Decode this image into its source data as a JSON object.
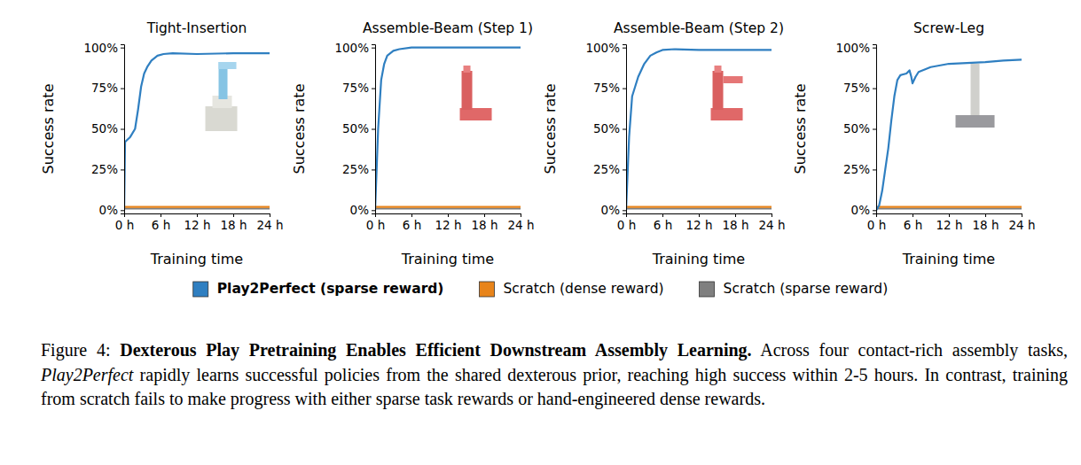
{
  "chart_data": [
    {
      "type": "line",
      "title": "Tight-Insertion",
      "x_label": "Training time",
      "y_label": "Success rate",
      "xlim": [
        0,
        24
      ],
      "ylim": [
        -2,
        102
      ],
      "xticks": [
        {
          "value": 0,
          "label": "0 h"
        },
        {
          "value": 6,
          "label": "6 h"
        },
        {
          "value": 12,
          "label": "12 h"
        },
        {
          "value": 18,
          "label": "18 h"
        },
        {
          "value": 24,
          "label": "24 h"
        }
      ],
      "yticks": [
        {
          "value": 0,
          "label": "0%"
        },
        {
          "value": 25,
          "label": "25%"
        },
        {
          "value": 50,
          "label": "50%"
        },
        {
          "value": 75,
          "label": "75%"
        },
        {
          "value": 100,
          "label": "100%"
        }
      ],
      "legend": "bottom",
      "series": [
        {
          "name": "Play2Perfect (sparse reward)",
          "color": "#2f7fc1",
          "x": [
            0,
            0.15,
            1,
            1.8,
            2.3,
            2.8,
            3.3,
            3.8,
            4.5,
            5.5,
            6.5,
            8,
            12,
            18,
            24
          ],
          "values": [
            0,
            42,
            45,
            50,
            62,
            76,
            84,
            88,
            92,
            95,
            96,
            96.5,
            96,
            96.5,
            96.5
          ]
        },
        {
          "name": "Scratch (dense reward)",
          "color": "#e8841a",
          "x": [
            0,
            24
          ],
          "values": [
            2,
            2
          ]
        },
        {
          "name": "Scratch (sparse reward)",
          "color": "#7f7f7f",
          "x": [
            0,
            24
          ],
          "values": [
            1,
            1
          ]
        }
      ]
    },
    {
      "type": "line",
      "title": "Assemble-Beam (Step 1)",
      "x_label": "Training time",
      "y_label": "Success rate",
      "xlim": [
        0,
        24
      ],
      "ylim": [
        -2,
        102
      ],
      "xticks": [
        {
          "value": 0,
          "label": "0 h"
        },
        {
          "value": 6,
          "label": "6 h"
        },
        {
          "value": 12,
          "label": "12 h"
        },
        {
          "value": 18,
          "label": "18 h"
        },
        {
          "value": 24,
          "label": "24 h"
        }
      ],
      "yticks": [
        {
          "value": 0,
          "label": "0%"
        },
        {
          "value": 25,
          "label": "25%"
        },
        {
          "value": 50,
          "label": "50%"
        },
        {
          "value": 75,
          "label": "75%"
        },
        {
          "value": 100,
          "label": "100%"
        }
      ],
      "series": [
        {
          "name": "Play2Perfect (sparse reward)",
          "color": "#2f7fc1",
          "x": [
            0,
            0.5,
            1,
            1.5,
            2,
            3,
            4,
            6,
            12,
            18,
            24
          ],
          "values": [
            0,
            50,
            80,
            90,
            95,
            98,
            99,
            100,
            100,
            100,
            100
          ]
        },
        {
          "name": "Scratch (dense reward)",
          "color": "#e8841a",
          "x": [
            0,
            24
          ],
          "values": [
            2,
            2
          ]
        },
        {
          "name": "Scratch (sparse reward)",
          "color": "#7f7f7f",
          "x": [
            0,
            24
          ],
          "values": [
            1,
            1
          ]
        }
      ]
    },
    {
      "type": "line",
      "title": "Assemble-Beam (Step 2)",
      "x_label": "Training time",
      "y_label": "Success rate",
      "xlim": [
        0,
        24
      ],
      "ylim": [
        -2,
        102
      ],
      "xticks": [
        {
          "value": 0,
          "label": "0 h"
        },
        {
          "value": 6,
          "label": "6 h"
        },
        {
          "value": 12,
          "label": "12 h"
        },
        {
          "value": 18,
          "label": "18 h"
        },
        {
          "value": 24,
          "label": "24 h"
        }
      ],
      "yticks": [
        {
          "value": 0,
          "label": "0%"
        },
        {
          "value": 25,
          "label": "25%"
        },
        {
          "value": 50,
          "label": "50%"
        },
        {
          "value": 75,
          "label": "75%"
        },
        {
          "value": 100,
          "label": "100%"
        }
      ],
      "series": [
        {
          "name": "Play2Perfect (sparse reward)",
          "color": "#2f7fc1",
          "x": [
            0,
            0.5,
            1,
            2,
            3,
            4,
            5,
            6,
            8,
            12,
            18,
            24
          ],
          "values": [
            0,
            45,
            70,
            82,
            90,
            95,
            97,
            98.5,
            99,
            98.5,
            98.5,
            98.5
          ]
        },
        {
          "name": "Scratch (dense reward)",
          "color": "#e8841a",
          "x": [
            0,
            24
          ],
          "values": [
            2,
            2
          ]
        },
        {
          "name": "Scratch (sparse reward)",
          "color": "#7f7f7f",
          "x": [
            0,
            24
          ],
          "values": [
            1,
            1
          ]
        }
      ]
    },
    {
      "type": "line",
      "title": "Screw-Leg",
      "x_label": "Training time",
      "y_label": "Success rate",
      "xlim": [
        0,
        24
      ],
      "ylim": [
        -2,
        102
      ],
      "xticks": [
        {
          "value": 0,
          "label": "0 h"
        },
        {
          "value": 6,
          "label": "6 h"
        },
        {
          "value": 12,
          "label": "12 h"
        },
        {
          "value": 18,
          "label": "18 h"
        },
        {
          "value": 24,
          "label": "24 h"
        }
      ],
      "yticks": [
        {
          "value": 0,
          "label": "0%"
        },
        {
          "value": 25,
          "label": "25%"
        },
        {
          "value": 50,
          "label": "50%"
        },
        {
          "value": 75,
          "label": "75%"
        },
        {
          "value": 100,
          "label": "100%"
        }
      ],
      "series": [
        {
          "name": "Play2Perfect (sparse reward)",
          "color": "#2f7fc1",
          "x": [
            0,
            0.5,
            1,
            1.5,
            2,
            2.5,
            3,
            3.5,
            4,
            5,
            5.5,
            5.8,
            6,
            6.5,
            7,
            9,
            12,
            15,
            18,
            21,
            24
          ],
          "values": [
            0,
            3,
            12,
            25,
            38,
            55,
            70,
            80,
            83,
            84,
            86,
            82,
            78,
            82,
            85,
            88,
            90,
            90.5,
            91,
            92,
            92.5
          ]
        },
        {
          "name": "Scratch (dense reward)",
          "color": "#e8841a",
          "x": [
            0,
            24
          ],
          "values": [
            2,
            2
          ]
        },
        {
          "name": "Scratch (sparse reward)",
          "color": "#7f7f7f",
          "x": [
            0,
            24
          ],
          "values": [
            1,
            1
          ]
        }
      ]
    }
  ],
  "caption": {
    "label": "Figure 4:",
    "title": "Dexterous Play Pretraining Enables Efficient Downstream Assembly Learning.",
    "body": [
      "Across four contact-rich assembly tasks,",
      "Play2Perfect",
      "rapidly learns successful policies from the shared dexterous prior, reaching high success within 2-5 hours.  In contrast, training from scratch fails to make progress with either sparse task rewards or hand-engineered dense rewards."
    ]
  }
}
